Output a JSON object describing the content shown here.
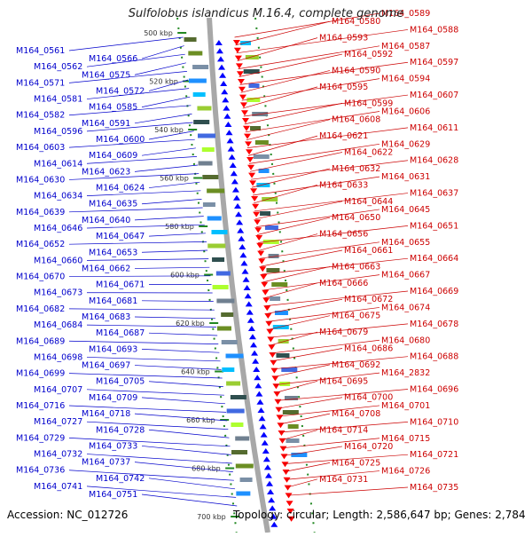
{
  "title": "Sulfolobus islandicus M.16.4, complete genome",
  "footer": {
    "accession": "Accession: NC_012726",
    "summary": "Topology: circular; Length: 2,586,647 bp; Genes: 2,784"
  },
  "colors": {
    "left_labels": "#0000cc",
    "right_labels": "#cc0000",
    "strand_plus": "#0000ff",
    "strand_minus": "#ff0000",
    "ruler": "#228822",
    "backbone": "#999999"
  },
  "ruler_ticks": [
    "500 kbp",
    "520 kbp",
    "540 kbp",
    "560 kbp",
    "580 kbp",
    "600 kbp",
    "620 kbp",
    "640 kbp",
    "660 kbp",
    "680 kbp",
    "700 kbp"
  ],
  "left_genes": [
    "M164_0561",
    "M164_0566",
    "M164_0562",
    "M164_0575",
    "M164_0571",
    "M164_0572",
    "M164_0581",
    "M164_0585",
    "M164_0582",
    "M164_0591",
    "M164_0596",
    "M164_0600",
    "M164_0603",
    "M164_0609",
    "M164_0614",
    "M164_0623",
    "M164_0630",
    "M164_0624",
    "M164_0634",
    "M164_0635",
    "M164_0639",
    "M164_0640",
    "M164_0646",
    "M164_0647",
    "M164_0652",
    "M164_0653",
    "M164_0660",
    "M164_0662",
    "M164_0670",
    "M164_0671",
    "M164_0673",
    "M164_0681",
    "M164_0682",
    "M164_0683",
    "M164_0684",
    "M164_0687",
    "M164_0689",
    "M164_0693",
    "M164_0698",
    "M164_0697",
    "M164_0699",
    "M164_0705",
    "M164_0707",
    "M164_0709",
    "M164_0716",
    "M164_0718",
    "M164_0727",
    "M164_0728",
    "M164_0729",
    "M164_0733",
    "M164_0732",
    "M164_0737",
    "M164_0736",
    "M164_0742",
    "M164_0741",
    "M164_0751"
  ],
  "right_genes": [
    "M164_0589",
    "M164_0580",
    "M164_0588",
    "M164_0593",
    "M164_0587",
    "M164_0592",
    "M164_0597",
    "M164_0590",
    "M164_0594",
    "M164_0595",
    "M164_0607",
    "M164_0599",
    "M164_0606",
    "M164_0608",
    "M164_0611",
    "M164_0621",
    "M164_0629",
    "M164_0622",
    "M164_0628",
    "M164_0632",
    "M164_0631",
    "M164_0633",
    "M164_0637",
    "M164_0644",
    "M164_0645",
    "M164_0650",
    "M164_0651",
    "M164_0656",
    "M164_0655",
    "M164_0661",
    "M164_0664",
    "M164_0663",
    "M164_0667",
    "M164_0666",
    "M164_0669",
    "M164_0672",
    "M164_0674",
    "M164_0675",
    "M164_0678",
    "M164_0679",
    "M164_0680",
    "M164_0686",
    "M164_0688",
    "M164_0692",
    "M164_2832",
    "M164_0695",
    "M164_0696",
    "M164_0700",
    "M164_0701",
    "M164_0708",
    "M164_0710",
    "M164_0714",
    "M164_0715",
    "M164_0720",
    "M164_0721",
    "M164_0725",
    "M164_0726",
    "M164_0731",
    "M164_0735"
  ]
}
